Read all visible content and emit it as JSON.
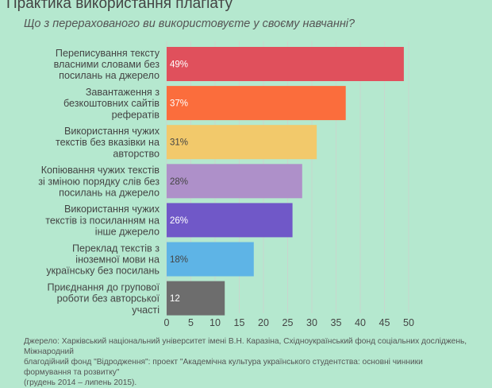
{
  "chart_data": {
    "type": "bar",
    "orientation": "horizontal",
    "title": "Практика використання плагіату",
    "subtitle": "Що з перерахованого ви використовуєте у своєму навчанні?",
    "categories": [
      [
        "Переписування тексту",
        "власними словами без",
        "посилань на джерело"
      ],
      [
        "Завантаження з",
        "безкоштовних сайтів",
        "рефератів"
      ],
      [
        "Використання чужих",
        "текстів без вказівки на",
        "авторство"
      ],
      [
        "Копіювання чужих текстів",
        "зі зміною порядку слів без",
        "посилань на джерело"
      ],
      [
        "Використання чужих",
        "текстів із посиланням на",
        "інше джерело"
      ],
      [
        "Переклад текстів з",
        "іноземної мови на",
        "українську без посилань"
      ],
      [
        "Приєднання до групової",
        "роботи без авторської",
        "участі"
      ]
    ],
    "values": [
      49,
      37,
      31,
      28,
      26,
      18,
      12
    ],
    "value_labels": [
      "49%",
      "37%",
      "31%",
      "28%",
      "26%",
      "18%",
      "12"
    ],
    "bar_colors": [
      "#e0505c",
      "#fb6d3c",
      "#f2c96b",
      "#ae90c9",
      "#7058c8",
      "#5eb4e6",
      "#6d6d6d"
    ],
    "value_label_colors": [
      "#ffffff",
      "#ffffff",
      "#444444",
      "#444444",
      "#ffffff",
      "#444444",
      "#ffffff"
    ],
    "xticks": [
      0,
      5,
      10,
      15,
      20,
      25,
      30,
      35,
      40,
      45,
      50
    ],
    "xlim": [
      0,
      52
    ],
    "grid": true,
    "grid_color": "#c8d6ce"
  },
  "source": {
    "lines": [
      "Джерело: Харківський національний університет імені В.Н. Каразіна, Східноукраїнський фонд соціальних досліджень, Міжнародний",
      "благодійний фонд \"Відродження\": проект \"Академічна культура українського студентства: основні чинники формування та розвитку\"",
      "(грудень 2014 – липень 2015)."
    ]
  }
}
